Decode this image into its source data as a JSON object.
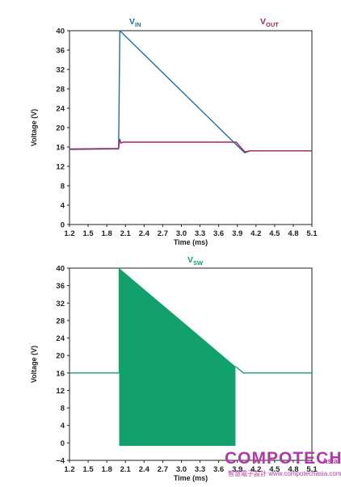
{
  "chart_data": [
    {
      "type": "line",
      "title": "",
      "xlabel": "Time (ms)",
      "ylabel": "Voltage (V)",
      "xlim": [
        1.2,
        5.1
      ],
      "ylim": [
        0,
        40
      ],
      "xticks": [
        1.2,
        1.5,
        1.8,
        2.1,
        2.4,
        2.7,
        3.0,
        3.3,
        3.6,
        3.9,
        4.2,
        4.5,
        4.8,
        5.1
      ],
      "xtick_labels": [
        "1.2",
        "1.5",
        "1.8",
        "2.1",
        "2.4",
        "2.7",
        "3.0",
        "3.3",
        "3.6",
        "3.9",
        "4.2",
        "4.5",
        "4.8",
        "5.1"
      ],
      "yticks": [
        0,
        4,
        8,
        12,
        16,
        20,
        24,
        28,
        32,
        36,
        40
      ],
      "ytick_labels": [
        "0",
        "4",
        "8",
        "12",
        "16",
        "20",
        "24",
        "28",
        "32",
        "36",
        "40"
      ],
      "grid": false,
      "legend": [
        {
          "main": "V",
          "sub": "IN",
          "color": "#1f6fa6"
        },
        {
          "main": "V",
          "sub": "OUT",
          "color": "#a8285a"
        }
      ],
      "series": [
        {
          "name": "VIN",
          "color": "#1f6fa6",
          "x": [
            1.2,
            1.99,
            2.01,
            3.88,
            4.02,
            4.1,
            5.1
          ],
          "y": [
            15.5,
            15.6,
            40,
            16.5,
            14.8,
            15.2,
            15.2
          ]
        },
        {
          "name": "VOUT",
          "color": "#a8285a",
          "x": [
            1.2,
            1.99,
            2.01,
            2.03,
            2.06,
            3.88,
            4.02,
            4.1,
            5.1
          ],
          "y": [
            15.6,
            15.7,
            17.6,
            16.8,
            17.0,
            17.0,
            15.0,
            15.2,
            15.2
          ]
        }
      ]
    },
    {
      "type": "area",
      "title": "",
      "xlabel": "Time (ms)",
      "ylabel": "Voltage (V)",
      "xlim": [
        1.2,
        5.1
      ],
      "ylim": [
        -4,
        40
      ],
      "xticks": [
        1.2,
        1.5,
        1.8,
        2.1,
        2.4,
        2.7,
        3.0,
        3.3,
        3.6,
        3.9,
        4.2,
        4.5,
        4.8,
        5.1
      ],
      "xtick_labels": [
        "1.2",
        "1.5",
        "1.8",
        "2.1",
        "2.4",
        "2.7",
        "3.0",
        "3.3",
        "3.6",
        "3.9",
        "4.2",
        "4.5",
        "4.8",
        "5.1"
      ],
      "yticks": [
        -4,
        0,
        4,
        8,
        12,
        16,
        20,
        24,
        28,
        32,
        36,
        40
      ],
      "ytick_labels": [
        "−4",
        "0",
        "4",
        "8",
        "12",
        "16",
        "20",
        "24",
        "28",
        "32",
        "36",
        "40"
      ],
      "grid": false,
      "legend": [
        {
          "main": "V",
          "sub": "SW",
          "color": "#12a06c"
        }
      ],
      "series": [
        {
          "name": "VSW",
          "color": "#12a06c",
          "line_x": [
            1.2,
            2.0,
            2.0
          ],
          "line_y": [
            16,
            16,
            40
          ],
          "line2_x": [
            3.87,
            4.0,
            5.1
          ],
          "line2_y": [
            17.5,
            16,
            16
          ],
          "band_x": [
            2.0,
            3.87
          ],
          "band_top": [
            40,
            17.5
          ],
          "band_bottom": -0.7
        }
      ]
    }
  ],
  "watermark": {
    "main": "COMPOTECH",
    "suffix": "Asia",
    "sub": "智慧電子設計 www.compotechasia.com"
  }
}
